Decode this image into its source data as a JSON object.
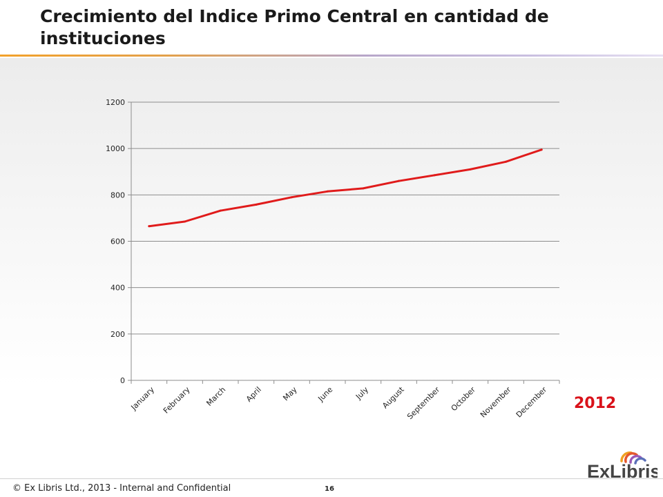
{
  "slide": {
    "title": "Crecimiento del Indice Primo Central en cantidad de instituciones",
    "year_label": "2012",
    "footer": "© Ex Libris Ltd., 2013 - Internal and Confidential",
    "page_number": "16",
    "logo_text": "ExLibris",
    "accent_color": "#d9121a"
  },
  "chart_data": {
    "type": "line",
    "categories": [
      "January",
      "February",
      "March",
      "April",
      "May",
      "June",
      "July",
      "August",
      "September",
      "October",
      "November",
      "December"
    ],
    "series": [
      {
        "values": [
          665,
          685,
          732,
          758,
          790,
          815,
          828,
          860,
          885,
          910,
          943,
          995
        ],
        "color": "#e01b1b"
      }
    ],
    "ylim": [
      0,
      1200
    ],
    "yticks": [
      0,
      200,
      400,
      600,
      800,
      1000,
      1200
    ],
    "grid": "horizontal",
    "legend": "none",
    "title": "",
    "xlabel": "",
    "ylabel": ""
  }
}
